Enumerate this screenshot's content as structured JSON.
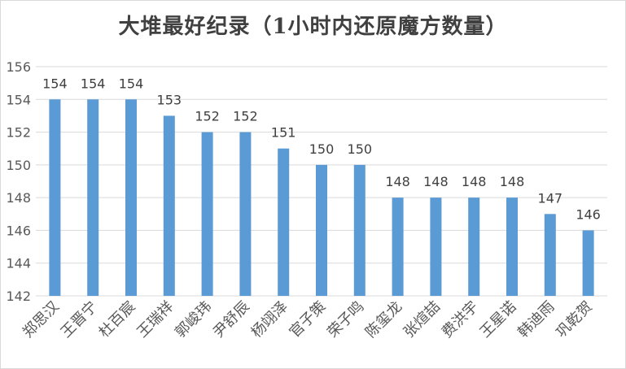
{
  "chart_data": {
    "type": "bar",
    "title": "大堆最好纪录（1小时内还原魔方数量）",
    "xlabel": "",
    "ylabel": "",
    "categories": [
      "郑思汉",
      "王晋宁",
      "杜百宸",
      "王瑞祥",
      "郭峻玮",
      "尹舒辰",
      "杨翊泽",
      "官子策",
      "荣子鸣",
      "陈玺龙",
      "张煊喆",
      "费洪宇",
      "王星诺",
      "韩迪雨",
      "巩乾贺"
    ],
    "values": [
      154,
      154,
      154,
      153,
      152,
      152,
      151,
      150,
      150,
      148,
      148,
      148,
      148,
      147,
      146
    ],
    "ylim": [
      142,
      156
    ],
    "yticks": [
      142,
      144,
      146,
      148,
      150,
      152,
      154,
      156
    ],
    "grid": true,
    "legend": "none",
    "bar_color": "#5b9bd5",
    "grid_color": "#d9d9d9"
  }
}
